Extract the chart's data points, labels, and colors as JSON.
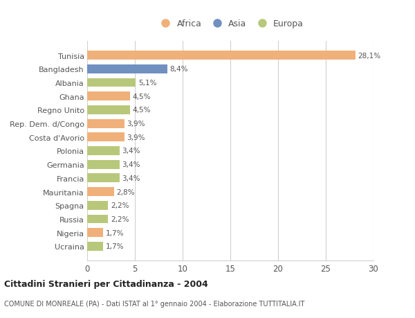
{
  "categories": [
    "Tunisia",
    "Bangladesh",
    "Albania",
    "Ghana",
    "Regno Unito",
    "Rep. Dem. d/Congo",
    "Costa d'Avorio",
    "Polonia",
    "Germania",
    "Francia",
    "Mauritania",
    "Spagna",
    "Russia",
    "Nigeria",
    "Ucraina"
  ],
  "values": [
    28.1,
    8.4,
    5.1,
    4.5,
    4.5,
    3.9,
    3.9,
    3.4,
    3.4,
    3.4,
    2.8,
    2.2,
    2.2,
    1.7,
    1.7
  ],
  "labels": [
    "28,1%",
    "8,4%",
    "5,1%",
    "4,5%",
    "4,5%",
    "3,9%",
    "3,9%",
    "3,4%",
    "3,4%",
    "3,4%",
    "2,8%",
    "2,2%",
    "2,2%",
    "1,7%",
    "1,7%"
  ],
  "continent": [
    "Africa",
    "Asia",
    "Europa",
    "Africa",
    "Europa",
    "Africa",
    "Africa",
    "Europa",
    "Europa",
    "Europa",
    "Africa",
    "Europa",
    "Europa",
    "Africa",
    "Europa"
  ],
  "colors": {
    "Africa": "#F0B07A",
    "Asia": "#7090C0",
    "Europa": "#B8C87A"
  },
  "legend_items": [
    "Africa",
    "Asia",
    "Europa"
  ],
  "xlim": [
    0,
    30
  ],
  "xticks": [
    0,
    5,
    10,
    15,
    20,
    25,
    30
  ],
  "title": "Cittadini Stranieri per Cittadinanza - 2004",
  "subtitle": "COMUNE DI MONREALE (PA) - Dati ISTAT al 1° gennaio 2004 - Elaborazione TUTTITALIA.IT",
  "bg_color": "#ffffff",
  "grid_color": "#d0d0d0",
  "bar_height": 0.65
}
